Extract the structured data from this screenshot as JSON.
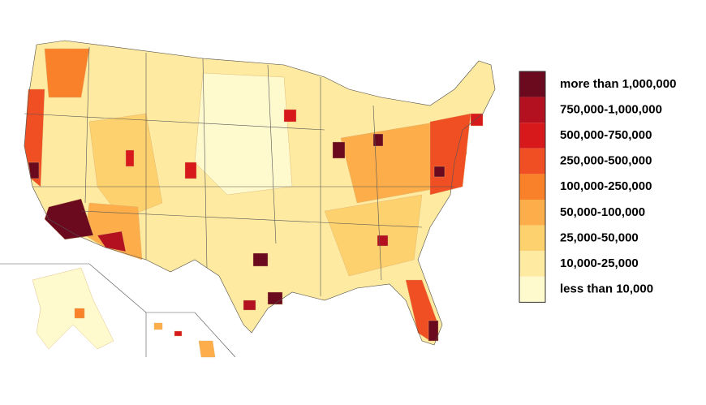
{
  "legend": {
    "items": [
      {
        "label": "more than 1,000,000",
        "color": "#6b0a1e"
      },
      {
        "label": "750,000-1,000,000",
        "color": "#b3111f"
      },
      {
        "label": "500,000-750,000",
        "color": "#d7191c"
      },
      {
        "label": "250,000-500,000",
        "color": "#f04e23"
      },
      {
        "label": "100,000-250,000",
        "color": "#f9812a"
      },
      {
        "label": "50,000-100,000",
        "color": "#fdae4b"
      },
      {
        "label": "25,000-50,000",
        "color": "#fed16f"
      },
      {
        "label": "10,000-25,000",
        "color": "#feeaa0"
      },
      {
        "label": "less than 10,000",
        "color": "#fffacd"
      }
    ]
  }
}
